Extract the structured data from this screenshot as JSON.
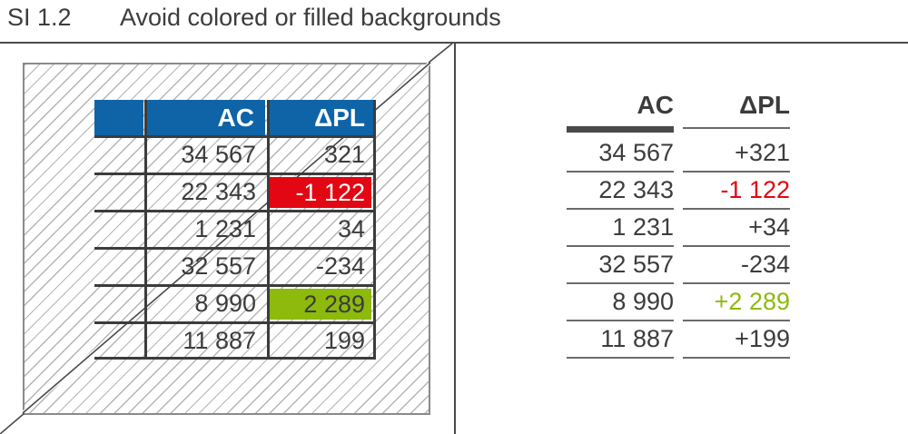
{
  "header": {
    "code": "SI 1.2",
    "title": "Avoid colored or filled backgrounds"
  },
  "bad_example": {
    "columns": [
      "AC",
      "ΔPL"
    ],
    "rows": [
      {
        "ac": "34 567",
        "dpl": "321",
        "highlight": "none"
      },
      {
        "ac": "22 343",
        "dpl": "-1 122",
        "highlight": "negative"
      },
      {
        "ac": "1 231",
        "dpl": "34",
        "highlight": "none"
      },
      {
        "ac": "32 557",
        "dpl": "-234",
        "highlight": "none"
      },
      {
        "ac": "8 990",
        "dpl": "2 289",
        "highlight": "positive"
      },
      {
        "ac": "11 887",
        "dpl": "199",
        "highlight": "none"
      }
    ]
  },
  "good_example": {
    "columns": [
      "AC",
      "ΔPL"
    ],
    "rows": [
      {
        "ac": "34 567",
        "dpl": "+321",
        "tone": "neutral"
      },
      {
        "ac": "22 343",
        "dpl": "-1 122",
        "tone": "negative"
      },
      {
        "ac": "1 231",
        "dpl": "+34",
        "tone": "neutral"
      },
      {
        "ac": "32 557",
        "dpl": "-234",
        "tone": "neutral"
      },
      {
        "ac": "8 990",
        "dpl": "+2 289",
        "tone": "positive"
      },
      {
        "ac": "11 887",
        "dpl": "+199",
        "tone": "neutral"
      }
    ]
  },
  "colors": {
    "header_fill": "#0e64a7",
    "negative": "#e30613",
    "positive": "#8dba0c",
    "text": "#3c3c3c"
  }
}
